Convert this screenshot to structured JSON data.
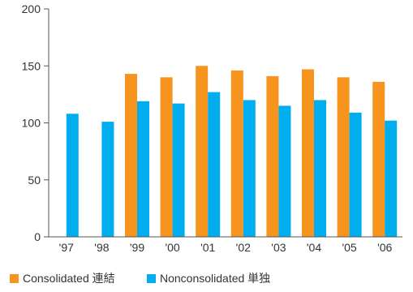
{
  "chart_data": {
    "type": "bar",
    "categories": [
      "'97",
      "'98",
      "'99",
      "'00",
      "'01",
      "'02",
      "'03",
      "'04",
      "'05",
      "'06"
    ],
    "series": [
      {
        "name": "Consolidated  連結",
        "color": "#f7941d",
        "values": [
          null,
          null,
          143,
          140,
          150,
          146,
          141,
          147,
          140,
          136
        ]
      },
      {
        "name": "Nonconsolidated  単独",
        "color": "#00aeef",
        "values": [
          108,
          101,
          119,
          117,
          127,
          120,
          115,
          120,
          109,
          102
        ]
      }
    ],
    "yticks": [
      0,
      50,
      100,
      150,
      200
    ],
    "ylim": [
      0,
      200
    ],
    "grid": false,
    "legend_position": "bottom-left"
  }
}
